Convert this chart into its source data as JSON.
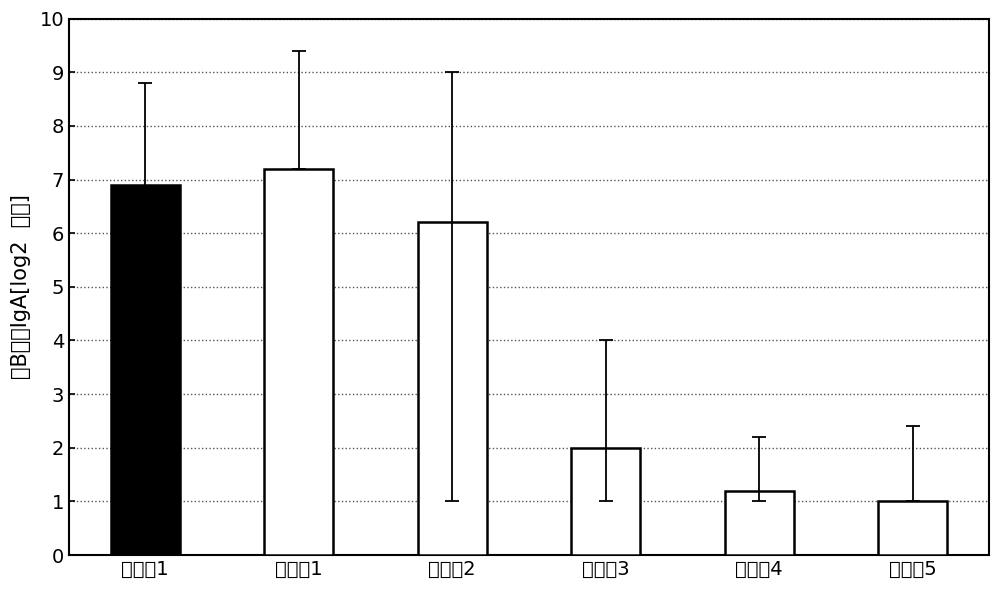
{
  "categories": [
    "实施例1",
    "比较例1",
    "比较例2",
    "比较例3",
    "比较例4",
    "比较例5"
  ],
  "values": [
    6.9,
    7.2,
    6.2,
    2.0,
    1.2,
    1.0
  ],
  "error_upper": [
    1.9,
    2.2,
    2.8,
    2.0,
    1.0,
    1.4
  ],
  "error_lower": [
    1.9,
    0.0,
    5.2,
    1.0,
    0.2,
    0.0
  ],
  "bar_colors": [
    "#000000",
    "#ffffff",
    "#ffffff",
    "#ffffff",
    "#ffffff",
    "#ffffff"
  ],
  "bar_edgecolors": [
    "#000000",
    "#000000",
    "#000000",
    "#000000",
    "#000000",
    "#000000"
  ],
  "ylabel": "抗B粘膜IgA[log2  效价]",
  "ylim": [
    0,
    10
  ],
  "yticks": [
    0,
    1,
    2,
    3,
    4,
    5,
    6,
    7,
    8,
    9,
    10
  ],
  "grid_color": "#555555",
  "background_color": "#ffffff",
  "bar_width": 0.45,
  "ylabel_fontsize": 15,
  "tick_fontsize": 14,
  "figsize": [
    10.0,
    5.9
  ],
  "dpi": 100
}
